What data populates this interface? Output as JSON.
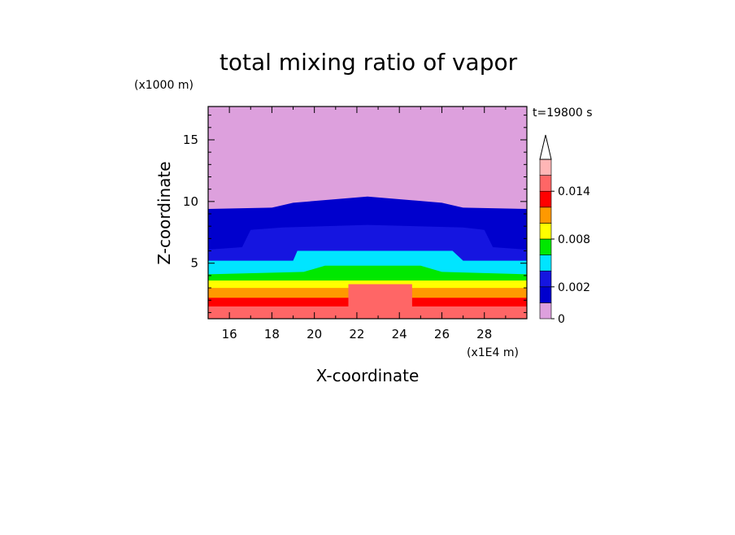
{
  "chart_data": {
    "type": "contour",
    "title": "total mixing ratio of vapor",
    "xlabel": "X-coordinate",
    "ylabel": "Z-coordinate",
    "x_unit": "(x1E4 m)",
    "y_unit": "(x1000 m)",
    "time_label": "t=19800 s",
    "xlim": [
      15,
      30
    ],
    "ylim": [
      0.5,
      17.7
    ],
    "xticks": [
      "16",
      "18",
      "20",
      "22",
      "24",
      "26",
      "28"
    ],
    "yticks": [
      "5",
      "10",
      "15"
    ],
    "colorbar": {
      "levels": [
        0,
        0.001,
        0.002,
        0.004,
        0.006,
        0.008,
        0.01,
        0.012,
        0.014,
        0.016
      ],
      "tick_labels": [
        "0",
        "0.002",
        "0.008",
        "0.014"
      ],
      "colors": [
        "#dda0dd",
        "#0000cd",
        "#1515e0",
        "#00e5ff",
        "#00e800",
        "#ffff00",
        "#ff9900",
        "#ff0000",
        "#ff6666",
        "#ffb6b6"
      ],
      "extend": "max"
    },
    "bands": [
      {
        "level": 0.014,
        "upper_edge": [
          [
            15,
            1.5
          ],
          [
            30,
            1.5
          ]
        ],
        "bump": {
          "x": [
            21.6,
            24.6
          ],
          "z": 3.3
        }
      },
      {
        "level": 0.012,
        "upper_edge": [
          [
            15,
            2.2
          ],
          [
            30,
            2.2
          ]
        ]
      },
      {
        "level": 0.01,
        "upper_edge": [
          [
            15,
            3.0
          ],
          [
            30,
            3.0
          ]
        ]
      },
      {
        "level": 0.008,
        "upper_edge": [
          [
            15,
            3.6
          ],
          [
            30,
            3.6
          ]
        ]
      },
      {
        "level": 0.006,
        "upper_edge": [
          [
            15,
            4.1
          ],
          [
            19.5,
            4.3
          ],
          [
            20.5,
            4.8
          ],
          [
            25,
            4.8
          ],
          [
            26,
            4.3
          ],
          [
            30,
            4.1
          ]
        ]
      },
      {
        "level": 0.004,
        "upper_edge": [
          [
            15,
            5.2
          ],
          [
            19,
            5.2
          ],
          [
            19.2,
            6.0
          ],
          [
            26.5,
            6.0
          ],
          [
            27,
            5.2
          ],
          [
            30,
            5.2
          ]
        ]
      },
      {
        "level": 0.002,
        "upper_edge": [
          [
            15,
            6.1
          ],
          [
            16.6,
            6.3
          ],
          [
            17.0,
            7.7
          ],
          [
            18.5,
            7.9
          ],
          [
            22.5,
            8.1
          ],
          [
            27.0,
            7.9
          ],
          [
            28.0,
            7.7
          ],
          [
            28.4,
            6.3
          ],
          [
            30,
            6.1
          ]
        ]
      },
      {
        "level": 0.001,
        "upper_edge": [
          [
            15,
            9.4
          ],
          [
            18,
            9.5
          ],
          [
            19,
            9.9
          ],
          [
            22.5,
            10.4
          ],
          [
            26,
            9.9
          ],
          [
            27,
            9.5
          ],
          [
            30,
            9.4
          ]
        ]
      },
      {
        "level": 0,
        "upper_edge": [
          [
            15,
            17.7
          ],
          [
            30,
            17.7
          ]
        ]
      }
    ]
  }
}
